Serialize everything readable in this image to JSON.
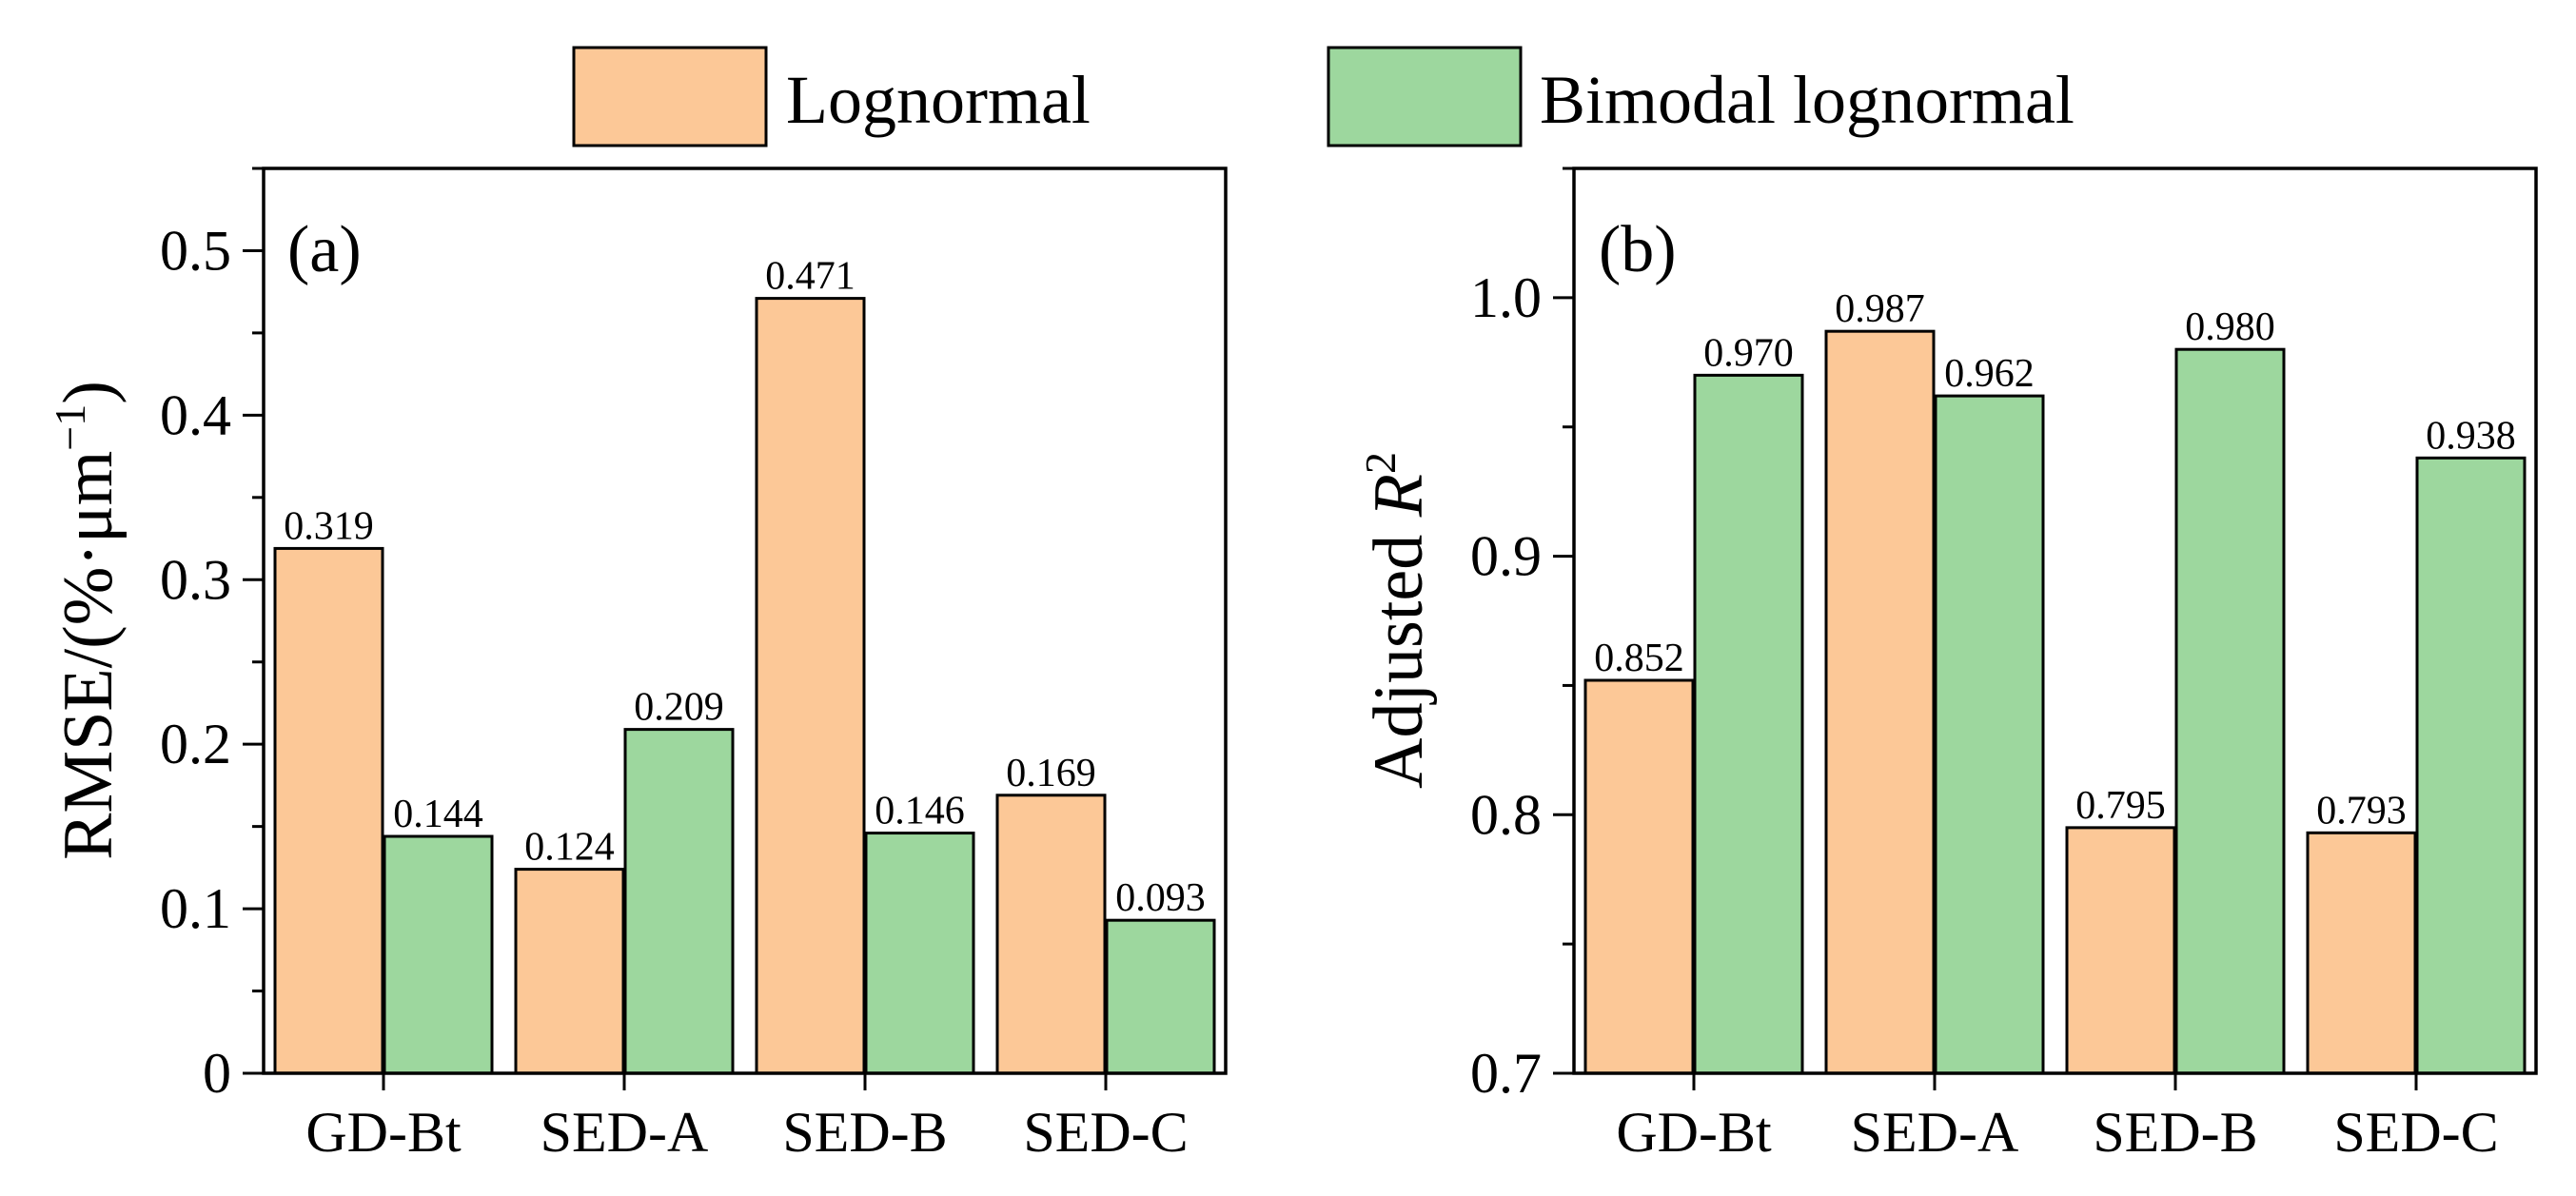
{
  "legend": {
    "entries": [
      {
        "label": "Lognormal",
        "color": "#FCC897"
      },
      {
        "label": "Bimodal lognormal",
        "color": "#9DD79E"
      }
    ]
  },
  "chart_data": [
    {
      "type": "bar",
      "panel_label": "(a)",
      "categories": [
        "GD-Bt",
        "SED-A",
        "SED-B",
        "SED-C"
      ],
      "series": [
        {
          "name": "Lognormal",
          "values": [
            0.319,
            0.124,
            0.471,
            0.169
          ],
          "labels": [
            "0.319",
            "0.124",
            "0.471",
            "0.169"
          ]
        },
        {
          "name": "Bimodal lognormal",
          "values": [
            0.144,
            0.209,
            0.146,
            0.093
          ],
          "labels": [
            "0.144",
            "0.209",
            "0.146",
            "0.093"
          ]
        }
      ],
      "ylabel": "RMSE/(%·μm",
      "ylabel_sup": "−1",
      "ylabel_close": ")",
      "ylim": [
        0,
        0.55
      ],
      "yticks": [
        0,
        0.1,
        0.2,
        0.3,
        0.4,
        0.5
      ],
      "ytick_labels": [
        "0",
        "0.1",
        "0.2",
        "0.3",
        "0.4",
        "0.5"
      ],
      "yminor_step": 0.05
    },
    {
      "type": "bar",
      "panel_label": "(b)",
      "categories": [
        "GD-Bt",
        "SED-A",
        "SED-B",
        "SED-C"
      ],
      "series": [
        {
          "name": "Lognormal",
          "values": [
            0.852,
            0.987,
            0.795,
            0.793
          ],
          "labels": [
            "0.852",
            "0.987",
            "0.795",
            "0.793"
          ]
        },
        {
          "name": "Bimodal lognormal",
          "values": [
            0.97,
            0.962,
            0.98,
            0.938
          ],
          "labels": [
            "0.970",
            "0.962",
            "0.980",
            "0.938"
          ]
        }
      ],
      "ylabel": "Adjusted ",
      "ylabel_italic": "R",
      "ylabel_sup": "2",
      "ylim": [
        0.7,
        1.05
      ],
      "yticks": [
        0.7,
        0.8,
        0.9,
        1.0
      ],
      "ytick_labels": [
        "0.7",
        "0.8",
        "0.9",
        "1.0"
      ],
      "yminor_step": 0.05
    }
  ]
}
